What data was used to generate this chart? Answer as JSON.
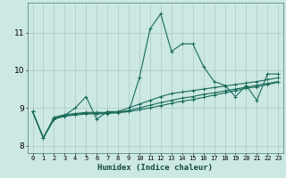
{
  "xlabel": "Humidex (Indice chaleur)",
  "background_color": "#cbe8e3",
  "grid_color": "#b0c8c4",
  "line_color": "#1a6b5a",
  "x_data": [
    0,
    1,
    2,
    3,
    4,
    5,
    6,
    7,
    8,
    9,
    10,
    11,
    12,
    13,
    14,
    15,
    16,
    17,
    18,
    19,
    20,
    21,
    22,
    23
  ],
  "series": [
    [
      8.9,
      8.2,
      8.7,
      8.8,
      9.0,
      9.3,
      8.7,
      8.9,
      8.9,
      8.9,
      9.8,
      11.1,
      11.5,
      10.5,
      10.7,
      10.7,
      10.1,
      9.7,
      9.6,
      9.3,
      9.6,
      9.2,
      9.9,
      9.9
    ],
    [
      8.9,
      8.2,
      8.75,
      8.82,
      8.85,
      8.88,
      8.88,
      8.88,
      8.9,
      9.0,
      9.1,
      9.2,
      9.3,
      9.38,
      9.42,
      9.46,
      9.5,
      9.54,
      9.58,
      9.62,
      9.66,
      9.7,
      9.75,
      9.8
    ],
    [
      8.9,
      8.2,
      8.72,
      8.8,
      8.83,
      8.86,
      8.86,
      8.87,
      8.89,
      8.93,
      9.0,
      9.07,
      9.14,
      9.2,
      9.26,
      9.3,
      9.36,
      9.4,
      9.45,
      9.5,
      9.55,
      9.6,
      9.65,
      9.7
    ],
    [
      8.9,
      8.2,
      8.7,
      8.78,
      8.81,
      8.84,
      8.84,
      8.85,
      8.87,
      8.9,
      8.95,
      9.0,
      9.06,
      9.12,
      9.18,
      9.22,
      9.28,
      9.34,
      9.4,
      9.46,
      9.52,
      9.56,
      9.62,
      9.68
    ]
  ],
  "ylim": [
    7.8,
    11.8
  ],
  "xlim": [
    -0.5,
    23.5
  ],
  "yticks": [
    8,
    9,
    10,
    11
  ],
  "xticks": [
    0,
    1,
    2,
    3,
    4,
    5,
    6,
    7,
    8,
    9,
    10,
    11,
    12,
    13,
    14,
    15,
    16,
    17,
    18,
    19,
    20,
    21,
    22,
    23
  ],
  "marker": "+",
  "markersize": 3,
  "linewidth": 0.8
}
